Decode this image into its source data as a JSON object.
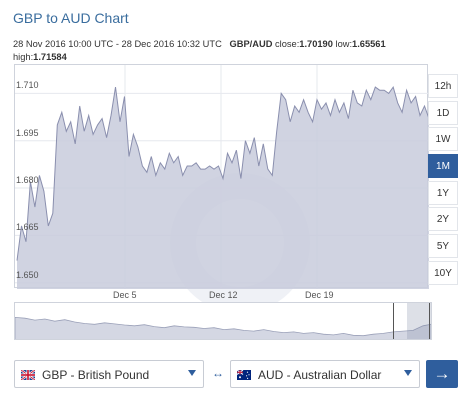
{
  "title": "GBP to AUD Chart",
  "info": {
    "date_range": "28 Nov 2016 10:00 UTC - 28 Dec 2016 10:32 UTC",
    "pair": "GBP/AUD",
    "close_label": "close:",
    "close_value": "1.70190",
    "low_label": "low:",
    "low_value": "1.65561",
    "high_label": "high:",
    "high_value": "1.71584"
  },
  "range_buttons": [
    {
      "label": "12h",
      "active": false
    },
    {
      "label": "1D",
      "active": false
    },
    {
      "label": "1W",
      "active": false
    },
    {
      "label": "1M",
      "active": true
    },
    {
      "label": "1Y",
      "active": false
    },
    {
      "label": "2Y",
      "active": false
    },
    {
      "label": "5Y",
      "active": false
    },
    {
      "label": "10Y",
      "active": false
    }
  ],
  "converter": {
    "from_label": "GBP - British Pound",
    "from_flag": "uk-flag-icon",
    "to_label": "AUD - Australian Dollar",
    "to_flag": "australia-flag-icon",
    "swap_icon": "swap-arrows-icon",
    "swap_glyph": "↔",
    "go_icon": "arrow-right-icon",
    "go_glyph": "→"
  },
  "colors": {
    "accent": "#2f5e9d",
    "title": "#3a6d9e",
    "area_fill": "#c8cbdc",
    "line": "#8a8fae"
  },
  "chart_data": {
    "type": "area",
    "series": [
      {
        "values": [
          1.657,
          1.668,
          1.663,
          1.682,
          1.674,
          1.684,
          1.679,
          1.668,
          1.672,
          1.7,
          1.704,
          1.698,
          1.701,
          1.694,
          1.706,
          1.698,
          1.703,
          1.697,
          1.7,
          1.702,
          1.696,
          1.703,
          1.712,
          1.701,
          1.709,
          1.69,
          1.697,
          1.693,
          1.687,
          1.685,
          1.69,
          1.684,
          1.688,
          1.686,
          1.691,
          1.688,
          1.69,
          1.684,
          1.687,
          1.687,
          1.688,
          1.686,
          1.686,
          1.687,
          1.686,
          1.687,
          1.683,
          1.691,
          1.688,
          1.692,
          1.683,
          1.695,
          1.691,
          1.696,
          1.687,
          1.694,
          1.686,
          1.684,
          1.698,
          1.71,
          1.708,
          1.701,
          1.706,
          1.704,
          1.708,
          1.704,
          1.701,
          1.708,
          1.705,
          1.707,
          1.703,
          1.708,
          1.704,
          1.707,
          1.702,
          1.711,
          1.707,
          1.706,
          1.711,
          1.708,
          1.712,
          1.711,
          1.711,
          1.71,
          1.712,
          1.707,
          1.704,
          1.711,
          1.707,
          1.709,
          1.703,
          1.706,
          1.702
        ]
      }
    ],
    "yticks": [
      "1.650",
      "1.665",
      "1.680",
      "1.695",
      "1.710"
    ],
    "ytick_values": [
      1.65,
      1.665,
      1.68,
      1.695,
      1.71
    ],
    "xticks": [
      "Dec 5",
      "Dec 12",
      "Dec 19"
    ],
    "ylim": [
      1.648,
      1.719
    ],
    "grid": true,
    "legend": "none"
  },
  "navigator_data": {
    "values": [
      0.62,
      0.6,
      0.55,
      0.58,
      0.52,
      0.56,
      0.5,
      0.46,
      0.44,
      0.48,
      0.45,
      0.42,
      0.4,
      0.43,
      0.38,
      0.35,
      0.4,
      0.37,
      0.36,
      0.33,
      0.35,
      0.3,
      0.32,
      0.28,
      0.26,
      0.3,
      0.25,
      0.22,
      0.24,
      0.2,
      0.22,
      0.18,
      0.16,
      0.2,
      0.15,
      0.14,
      0.18,
      0.2,
      0.24,
      0.26,
      0.28,
      0.4,
      0.45
    ]
  }
}
